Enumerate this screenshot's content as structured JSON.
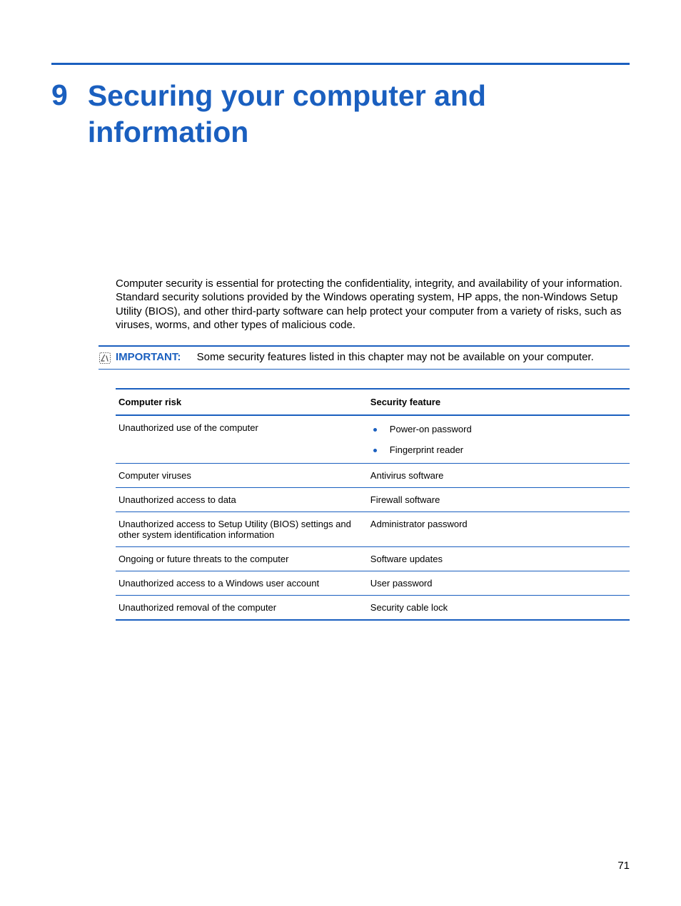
{
  "colors": {
    "accent": "#1a5fbf",
    "text": "#000000",
    "background": "#ffffff"
  },
  "chapter": {
    "number": "9",
    "title": "Securing your computer and information"
  },
  "intro": "Computer security is essential for protecting the confidentiality, integrity, and availability of your information. Standard security solutions provided by the Windows operating system, HP apps, the non-Windows Setup Utility (BIOS), and other third-party software can help protect your computer from a variety of risks, such as viruses, worms, and other types of malicious code.",
  "note": {
    "prefix": "IMPORTANT:",
    "text": "Some security features listed in this chapter may not be available on your computer."
  },
  "table": {
    "headers": {
      "risk": "Computer risk",
      "feature": "Security feature"
    },
    "rows": [
      {
        "risk": "Unauthorized use of the computer",
        "features": [
          "Power-on password",
          "Fingerprint reader"
        ],
        "bulleted": true
      },
      {
        "risk": "Computer viruses",
        "features": [
          "Antivirus software"
        ],
        "bulleted": false
      },
      {
        "risk": "Unauthorized access to data",
        "features": [
          "Firewall software"
        ],
        "bulleted": false
      },
      {
        "risk": "Unauthorized access to Setup Utility (BIOS) settings and other system identification information",
        "features": [
          "Administrator password"
        ],
        "bulleted": false
      },
      {
        "risk": "Ongoing or future threats to the computer",
        "features": [
          "Software updates"
        ],
        "bulleted": false
      },
      {
        "risk": "Unauthorized access to a Windows user account",
        "features": [
          "User password"
        ],
        "bulleted": false
      },
      {
        "risk": "Unauthorized removal of the computer",
        "features": [
          "Security cable lock"
        ],
        "bulleted": false
      }
    ]
  },
  "pageNumber": "71"
}
